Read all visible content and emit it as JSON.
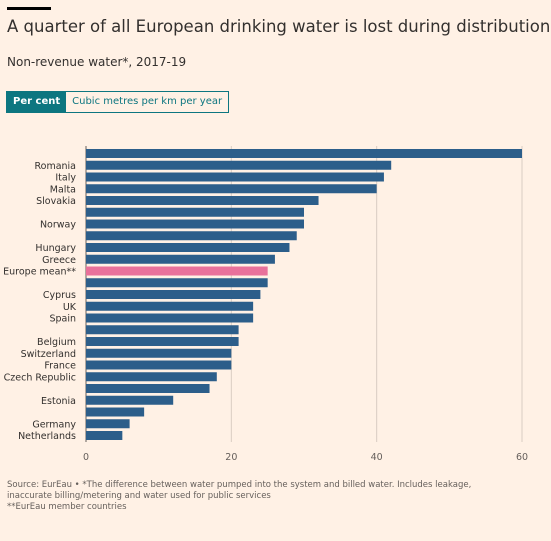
{
  "title": "A quarter of all European drinking water is lost during distribution",
  "subtitle": "Non-revenue water*, 2017-19",
  "toggle": {
    "active": "Per cent",
    "inactive": "Cubic metres per km per year"
  },
  "colors": {
    "bar": "#2c5e8a",
    "highlight": "#e8719b",
    "active_tab": "#0d7680"
  },
  "chart_data": {
    "type": "bar",
    "orientation": "horizontal",
    "categories": [
      "",
      "Romania",
      "Italy",
      "Malta",
      "Slovakia",
      "",
      "Norway",
      "",
      "Hungary",
      "Greece",
      "Europe mean**",
      "",
      "Cyprus",
      "UK",
      "Spain",
      "",
      "Belgium",
      "Switzerland",
      "France",
      "Czech Republic",
      "",
      "Estonia",
      "",
      "Germany",
      "Netherlands"
    ],
    "values": [
      60,
      42,
      41,
      40,
      32,
      30,
      30,
      29,
      28,
      26,
      25,
      25,
      24,
      23,
      23,
      21,
      21,
      20,
      20,
      18,
      17,
      12,
      8,
      6,
      5
    ],
    "highlight_index": 10,
    "xlim": [
      0,
      60
    ],
    "xticks": [
      0,
      20,
      40,
      60
    ],
    "grid": true
  },
  "footer": {
    "line1": "Source: EurEau • *The difference between water pumped into the system and billed water. Includes leakage, inaccurate billing/metering and water used for public services",
    "line2": "**EurEau member countries"
  }
}
